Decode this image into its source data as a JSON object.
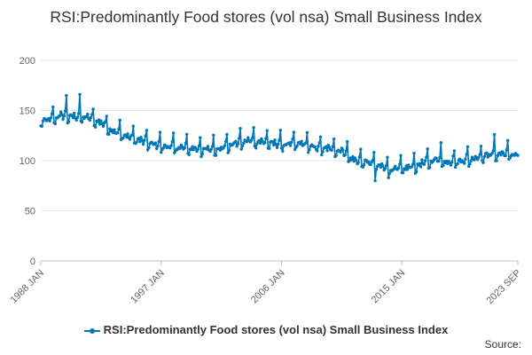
{
  "chart_data": {
    "type": "line",
    "title": "RSI:Predominantly Food stores (vol nsa) Small Business Index",
    "xlabel": "",
    "ylabel": "",
    "x_range": [
      "1988 JAN",
      "2023 SEP"
    ],
    "ylim": [
      0,
      200
    ],
    "y_ticks": [
      0,
      50,
      100,
      150,
      200
    ],
    "x_ticks": [
      "1988 JAN",
      "1997 JAN",
      "2006 JAN",
      "2015 JAN",
      "2023 SEP"
    ],
    "grid": true,
    "legend_position": "bottom",
    "series": [
      {
        "name": "RSI:Predominantly Food stores (vol nsa) Small Business Index",
        "color": "#0077b6",
        "annual_approx": [
          {
            "year": 1988,
            "value": 140
          },
          {
            "year": 1989,
            "value": 145
          },
          {
            "year": 1990,
            "value": 144
          },
          {
            "year": 1991,
            "value": 143
          },
          {
            "year": 1992,
            "value": 138
          },
          {
            "year": 1993,
            "value": 129
          },
          {
            "year": 1994,
            "value": 124
          },
          {
            "year": 1995,
            "value": 120
          },
          {
            "year": 1996,
            "value": 116
          },
          {
            "year": 1997,
            "value": 114
          },
          {
            "year": 1998,
            "value": 113
          },
          {
            "year": 1999,
            "value": 112
          },
          {
            "year": 2000,
            "value": 111
          },
          {
            "year": 2001,
            "value": 113
          },
          {
            "year": 2002,
            "value": 117
          },
          {
            "year": 2003,
            "value": 120
          },
          {
            "year": 2004,
            "value": 119
          },
          {
            "year": 2005,
            "value": 117
          },
          {
            "year": 2006,
            "value": 116
          },
          {
            "year": 2007,
            "value": 117
          },
          {
            "year": 2008,
            "value": 113
          },
          {
            "year": 2009,
            "value": 112
          },
          {
            "year": 2010,
            "value": 110
          },
          {
            "year": 2011,
            "value": 100
          },
          {
            "year": 2012,
            "value": 98
          },
          {
            "year": 2013,
            "value": 94
          },
          {
            "year": 2014,
            "value": 91
          },
          {
            "year": 2015,
            "value": 93
          },
          {
            "year": 2016,
            "value": 97
          },
          {
            "year": 2017,
            "value": 101
          },
          {
            "year": 2018,
            "value": 99
          },
          {
            "year": 2019,
            "value": 100
          },
          {
            "year": 2020,
            "value": 103
          },
          {
            "year": 2021,
            "value": 106
          },
          {
            "year": 2022,
            "value": 107
          },
          {
            "year": 2023,
            "value": 106
          }
        ],
        "peaks": [
          {
            "date": "1989 DEC",
            "value": 165
          },
          {
            "date": "1990 DEC",
            "value": 166
          },
          {
            "date": "2003 DEC",
            "value": 133
          },
          {
            "date": "2017 DEC",
            "value": 118
          },
          {
            "date": "2021 DEC",
            "value": 126
          }
        ],
        "troughs": [
          {
            "date": "2013 JAN",
            "value": 80
          },
          {
            "date": "2014 JAN",
            "value": 83
          }
        ]
      }
    ]
  },
  "legend": {
    "label": "RSI:Predominantly Food stores (vol nsa) Small Business Index"
  },
  "source": {
    "label": "Source:"
  }
}
